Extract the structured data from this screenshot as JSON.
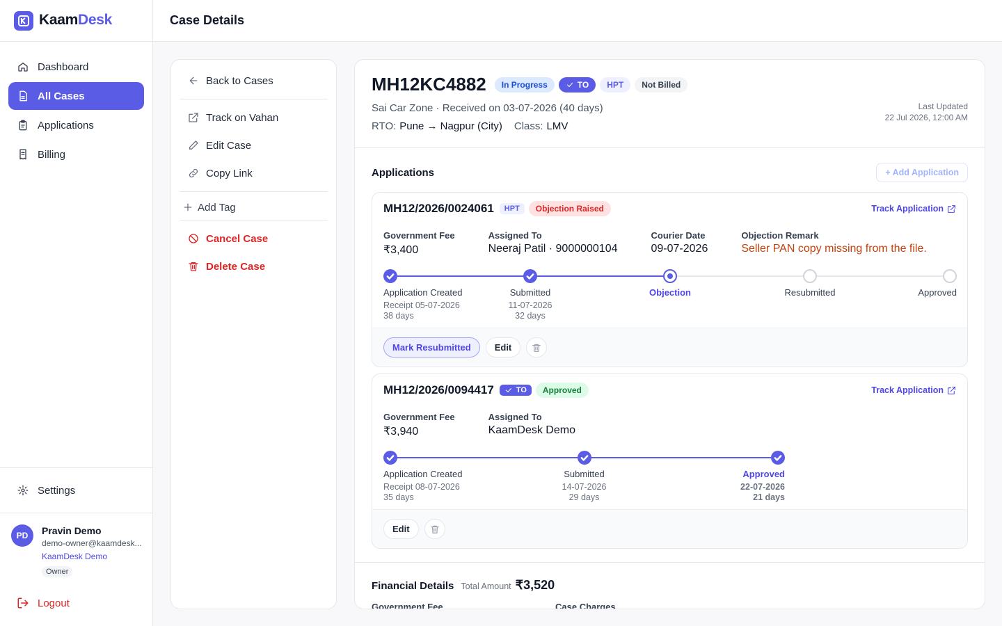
{
  "brand": {
    "name_a": "Kaam",
    "name_b": "Desk"
  },
  "nav": [
    "Dashboard",
    "All Cases",
    "Applications",
    "Billing"
  ],
  "nav_active": 1,
  "settings": "Settings",
  "user": {
    "initials": "PD",
    "name": "Pravin Demo",
    "email": "demo-owner@kaamdesk...",
    "org": "KaamDesk Demo",
    "role": "Owner"
  },
  "logout": "Logout",
  "header": {
    "title": "Case Details"
  },
  "actions": {
    "back": "Back to Cases",
    "links": [
      "Track on Vahan",
      "Edit Case",
      "Copy Link"
    ],
    "add_tag": "Add Tag",
    "danger": [
      "Cancel Case",
      "Delete Case"
    ]
  },
  "case": {
    "id": "MH12KC4882",
    "badges": [
      {
        "text": "In Progress",
        "bg": "#dbeafe",
        "fg": "#1d4ed8"
      },
      {
        "text": "TO",
        "bg": "#5b5ce6",
        "fg": "#ffffff",
        "check": true
      },
      {
        "text": "HPT",
        "bg": "#eef0ff",
        "fg": "#5b5ce6"
      },
      {
        "text": "Not Billed",
        "bg": "#f3f4f6",
        "fg": "#374151"
      }
    ],
    "summary": "Sai Car Zone · Received on 03-07-2026 (40 days)",
    "rto_label": "RTO:",
    "rto": "Pune → Nagpur (City)",
    "class_label": "Class:",
    "class": "LMV",
    "last_updated_label": "Last Updated",
    "last_updated": "22 Jul 2026, 12:00 AM"
  },
  "applications": {
    "title": "Applications",
    "add": "+ Add Application",
    "items": [
      {
        "number": "MH12/2026/0024061",
        "tags": [
          {
            "text": "HPT",
            "bg": "#eef0ff",
            "fg": "#5b5ce6"
          },
          {
            "text": "Objection Raised",
            "bg": "#fee2e2",
            "fg": "#dc2626"
          }
        ],
        "track": "Track Application",
        "fields": [
          {
            "label": "Government Fee",
            "value": "₹3,400"
          },
          {
            "label": "Assigned To",
            "value": "Neeraj Patil · 9000000104"
          },
          {
            "label": "Courier Date",
            "value": "09-07-2026"
          },
          {
            "label": "Objection Remark",
            "value": "Seller PAN copy missing from the file.",
            "color": "#c2410c"
          }
        ],
        "steps": [
          {
            "label": "Application Created",
            "state": "done",
            "details": [
              "Receipt 05-07-2026",
              "38 days"
            ]
          },
          {
            "label": "Submitted",
            "state": "done",
            "details": [
              "11-07-2026",
              "32 days"
            ]
          },
          {
            "label": "Objection",
            "state": "current"
          },
          {
            "label": "Resubmitted",
            "state": "pending"
          },
          {
            "label": "Approved",
            "state": "pending"
          }
        ],
        "buttons": [
          "Mark Resubmitted",
          "Edit"
        ]
      },
      {
        "number": "MH12/2026/0094417",
        "tags": [
          {
            "text": "TO",
            "bg": "#5b5ce6",
            "fg": "#ffffff",
            "check": true
          },
          {
            "text": "Approved",
            "bg": "#dcfce7",
            "fg": "#15803d"
          }
        ],
        "track": "Track Application",
        "fields": [
          {
            "label": "Government Fee",
            "value": "₹3,940"
          },
          {
            "label": "Assigned To",
            "value": "KaamDesk Demo"
          }
        ],
        "steps": [
          {
            "label": "Application Created",
            "state": "done",
            "details": [
              "Receipt 08-07-2026",
              "35 days"
            ]
          },
          {
            "label": "Submitted",
            "state": "done",
            "details": [
              "14-07-2026",
              "29 days"
            ]
          },
          {
            "label": "Approved",
            "state": "done",
            "details": [
              "22-07-2026",
              "21 days"
            ]
          }
        ],
        "buttons": [
          "Edit"
        ]
      }
    ]
  },
  "financial": {
    "title": "Financial Details",
    "total_label": "Total Amount",
    "total": "₹3,520",
    "fields": [
      "Government Fee",
      "Case Charges"
    ]
  }
}
